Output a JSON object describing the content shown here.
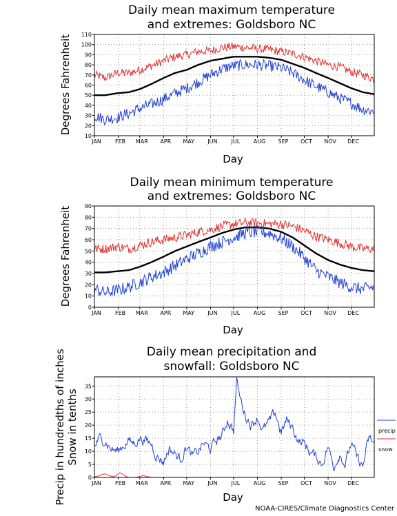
{
  "credit": "NOAA-CIRES/Climate Diagnostics Center",
  "chart_data": [
    {
      "type": "line",
      "title": [
        "Daily mean maximum temperature",
        "and extremes: Goldsboro NC"
      ],
      "xlabel": "Day",
      "ylabel": "Degrees Fahrenheit",
      "x_ticks": [
        "JAN",
        "FEB",
        "MAR",
        "APR",
        "MAY",
        "JUN",
        "JUL",
        "AUG",
        "SEP",
        "OCT",
        "NOV",
        "DEC"
      ],
      "ylim": [
        10,
        110
      ],
      "yticks": [
        10,
        20,
        30,
        40,
        50,
        60,
        70,
        80,
        90,
        100,
        110
      ],
      "grid": true,
      "series": [
        {
          "role": "extreme-high",
          "color": "#e03030",
          "x": [
            1,
            15,
            31,
            46,
            60,
            75,
            91,
            106,
            121,
            136,
            152,
            167,
            182,
            197,
            213,
            228,
            244,
            259,
            274,
            289,
            305,
            320,
            335,
            350,
            365
          ],
          "values": [
            70,
            67,
            72,
            72,
            75,
            79,
            84,
            88,
            90,
            93,
            94,
            97,
            98,
            97,
            96,
            95,
            93,
            91,
            88,
            84,
            80,
            78,
            73,
            70,
            66
          ]
        },
        {
          "role": "mean",
          "color": "#000000",
          "x": [
            1,
            15,
            31,
            46,
            60,
            75,
            91,
            106,
            121,
            136,
            152,
            167,
            182,
            197,
            213,
            228,
            244,
            259,
            274,
            289,
            305,
            320,
            335,
            350,
            365
          ],
          "values": [
            50,
            50,
            52,
            53,
            56,
            61,
            67,
            72,
            75,
            80,
            84,
            86,
            88,
            88,
            88,
            87,
            85,
            81,
            77,
            72,
            67,
            62,
            57,
            53,
            51
          ]
        },
        {
          "role": "extreme-low",
          "color": "#2040d0",
          "x": [
            1,
            15,
            31,
            46,
            60,
            75,
            91,
            106,
            121,
            136,
            152,
            167,
            182,
            197,
            213,
            228,
            244,
            259,
            274,
            289,
            305,
            320,
            335,
            350,
            365
          ],
          "values": [
            30,
            26,
            28,
            32,
            37,
            41,
            46,
            52,
            57,
            63,
            70,
            76,
            79,
            80,
            80,
            79,
            77,
            72,
            65,
            59,
            53,
            47,
            42,
            36,
            34
          ]
        }
      ]
    },
    {
      "type": "line",
      "title": [
        "Daily mean minimum temperature",
        "and extremes: Goldsboro NC"
      ],
      "xlabel": "Day",
      "ylabel": "Degrees Fahrenheit",
      "x_ticks": [
        "JAN",
        "FEB",
        "MAR",
        "APR",
        "MAY",
        "JUN",
        "JUL",
        "AUG",
        "SEP",
        "OCT",
        "NOV",
        "DEC"
      ],
      "ylim": [
        0,
        90
      ],
      "yticks": [
        0,
        10,
        20,
        30,
        40,
        50,
        60,
        70,
        80,
        90
      ],
      "grid": true,
      "series": [
        {
          "role": "extreme-high",
          "color": "#e03030",
          "x": [
            1,
            15,
            31,
            46,
            60,
            75,
            91,
            106,
            121,
            136,
            152,
            167,
            182,
            197,
            213,
            228,
            244,
            259,
            274,
            289,
            305,
            320,
            335,
            350,
            365
          ],
          "values": [
            52,
            52,
            54,
            52,
            55,
            58,
            60,
            62,
            64,
            67,
            69,
            72,
            74,
            75,
            75,
            74,
            74,
            72,
            68,
            63,
            60,
            57,
            54,
            52,
            52
          ]
        },
        {
          "role": "mean",
          "color": "#000000",
          "x": [
            1,
            15,
            31,
            46,
            60,
            75,
            91,
            106,
            121,
            136,
            152,
            167,
            182,
            197,
            213,
            228,
            244,
            259,
            274,
            289,
            305,
            320,
            335,
            350,
            365
          ],
          "values": [
            31,
            31,
            32,
            33,
            36,
            40,
            45,
            50,
            54,
            58,
            62,
            66,
            69,
            71,
            71,
            70,
            67,
            62,
            55,
            48,
            42,
            38,
            35,
            33,
            32
          ]
        },
        {
          "role": "extreme-low",
          "color": "#2040d0",
          "x": [
            1,
            15,
            31,
            46,
            60,
            75,
            91,
            106,
            121,
            136,
            152,
            167,
            182,
            197,
            213,
            228,
            244,
            259,
            274,
            289,
            305,
            320,
            335,
            350,
            365
          ],
          "values": [
            16,
            13,
            15,
            18,
            22,
            27,
            31,
            37,
            43,
            48,
            54,
            58,
            62,
            66,
            67,
            66,
            61,
            54,
            44,
            33,
            27,
            22,
            18,
            16,
            18
          ]
        }
      ]
    },
    {
      "type": "line",
      "title": [
        "Daily mean precipitation and",
        "snowfall: Goldsboro NC"
      ],
      "xlabel": "Day",
      "ylabel": [
        "Precip in hundredths of inches",
        "Snow in tenths"
      ],
      "x_ticks": [
        "JAN",
        "FEB",
        "MAR",
        "APR",
        "MAY",
        "JUN",
        "JUL",
        "AUG",
        "SEP",
        "OCT",
        "NOV",
        "DEC"
      ],
      "ylim": [
        0,
        38.5
      ],
      "yticks": [
        0,
        5,
        10,
        15,
        20,
        25,
        30,
        35
      ],
      "grid": true,
      "legend": {
        "placement": "right",
        "entries": [
          "precip",
          "snow"
        ]
      },
      "series": [
        {
          "name": "precip",
          "color": "#2040d0",
          "x": [
            1,
            8,
            15,
            22,
            31,
            38,
            46,
            53,
            60,
            68,
            75,
            82,
            91,
            98,
            106,
            113,
            121,
            128,
            136,
            143,
            152,
            159,
            167,
            174,
            182,
            186,
            190,
            197,
            205,
            213,
            220,
            228,
            236,
            244,
            251,
            259,
            266,
            274,
            281,
            289,
            297,
            305,
            312,
            320,
            327,
            335,
            342,
            350,
            358,
            365
          ],
          "values": [
            12,
            15,
            14,
            11,
            10,
            12,
            14,
            13,
            15,
            14,
            13,
            8,
            6,
            11,
            9,
            7,
            12,
            8,
            10,
            13,
            11,
            14,
            16,
            22,
            18,
            37,
            31,
            24,
            20,
            23,
            18,
            21,
            25,
            17,
            22,
            19,
            14,
            13,
            10,
            8,
            5,
            12,
            4,
            9,
            5,
            13,
            8,
            4,
            15,
            13
          ]
        },
        {
          "name": "snow",
          "color": "#e03030",
          "x": [
            1,
            6,
            10,
            14,
            18,
            22,
            26,
            30,
            34,
            38,
            42,
            46,
            50,
            55,
            60,
            65,
            70,
            75,
            80,
            120,
            180,
            240,
            300,
            340,
            365
          ],
          "values": [
            0.3,
            0.5,
            1.0,
            1.4,
            1.0,
            0.5,
            0.3,
            0.8,
            1.8,
            1.2,
            0.4,
            0,
            0,
            0,
            0.4,
            0.7,
            0.3,
            0,
            0,
            0,
            0,
            0,
            0,
            0,
            0
          ]
        }
      ]
    }
  ]
}
